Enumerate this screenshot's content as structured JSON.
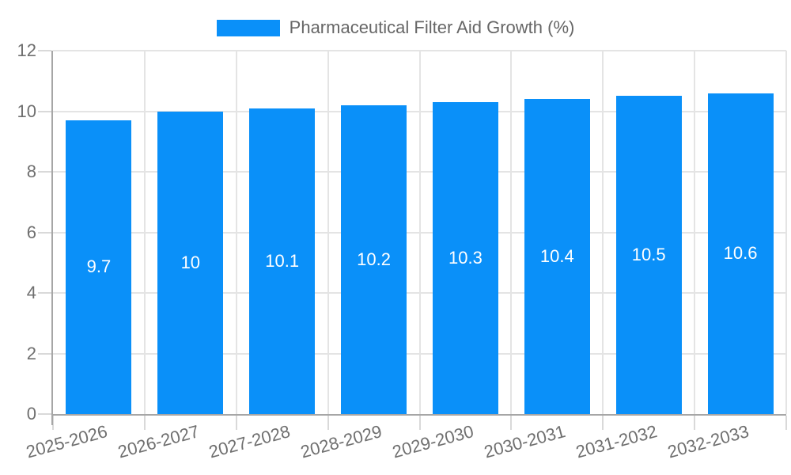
{
  "chart_data": {
    "type": "bar",
    "title": "Pharmaceutical Filter Aid Growth (%)",
    "legend_position": "top-center",
    "categories": [
      "2025-2026",
      "2026-2027",
      "2027-2028",
      "2028-2029",
      "2029-2030",
      "2030-2031",
      "2031-2032",
      "2032-2033"
    ],
    "series": [
      {
        "name": "Pharmaceutical Filter Aid Growth (%)",
        "values": [
          9.7,
          10,
          10.1,
          10.2,
          10.3,
          10.4,
          10.5,
          10.6
        ],
        "value_labels": [
          "9.7",
          "10",
          "10.1",
          "10.2",
          "10.3",
          "10.4",
          "10.5",
          "10.6"
        ]
      }
    ],
    "xlabel": "",
    "ylabel": "",
    "ylim": [
      0,
      12
    ],
    "yticks": [
      0,
      2,
      4,
      6,
      8,
      10,
      12
    ],
    "grid": "on",
    "colors": {
      "bar": "#0a90f9",
      "grid": "#e4e4e4",
      "tick_mark": "#d9d9d9",
      "axis_line": "#a6a6a6",
      "axis_text": "#6f6f6f",
      "legend_text": "#666666",
      "value_label_text": "#ffffff",
      "background": "#ffffff"
    }
  }
}
